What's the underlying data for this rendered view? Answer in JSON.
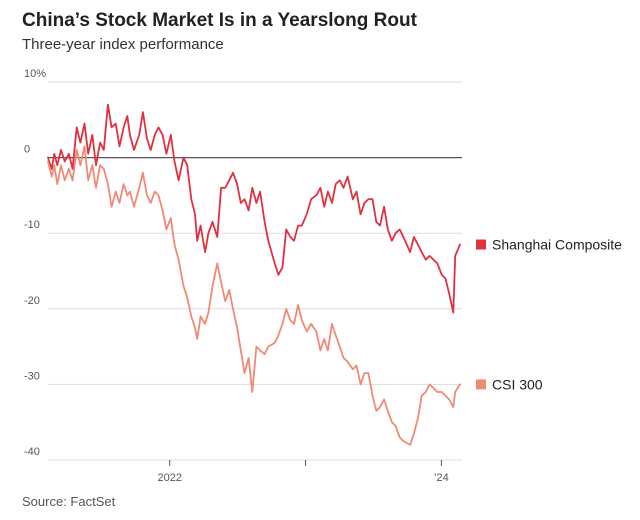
{
  "chart_data": {
    "type": "line",
    "title": "China’s Stock Market Is in a Yearslong Rout",
    "subtitle": "Three-year index performance",
    "source": "Source: FactSet",
    "y_unit": "%",
    "ylim": [
      -40,
      10
    ],
    "y_ticks": [
      {
        "value": 10,
        "label": "10%"
      },
      {
        "value": 0,
        "label": "0"
      },
      {
        "value": -10,
        "label": "-10"
      },
      {
        "value": -20,
        "label": "-20"
      },
      {
        "value": -30,
        "label": "-30"
      },
      {
        "value": -40,
        "label": "-40"
      }
    ],
    "xlim": [
      "2021-02-08",
      "2024-02-20"
    ],
    "x_ticks": [
      {
        "date": "2022-01-01",
        "label": "2022"
      },
      {
        "date": "2023-01-01",
        "label": ""
      },
      {
        "date": "2024-01-01",
        "label": "’24"
      }
    ],
    "grid": true,
    "zero_line": true,
    "legend_placement": "right, at line ends",
    "series": [
      {
        "name": "Shanghai Composite",
        "color": "#e0313f",
        "x": [
          "2021-02-08",
          "2021-02-18",
          "2021-02-25",
          "2021-03-05",
          "2021-03-15",
          "2021-03-25",
          "2021-04-05",
          "2021-04-15",
          "2021-04-26",
          "2021-05-06",
          "2021-05-17",
          "2021-05-27",
          "2021-06-07",
          "2021-06-17",
          "2021-06-28",
          "2021-07-08",
          "2021-07-19",
          "2021-07-29",
          "2021-08-09",
          "2021-08-19",
          "2021-08-30",
          "2021-09-09",
          "2021-09-16",
          "2021-09-27",
          "2021-10-11",
          "2021-10-21",
          "2021-11-01",
          "2021-11-11",
          "2021-11-22",
          "2021-12-02",
          "2021-12-13",
          "2021-12-23",
          "2022-01-04",
          "2022-01-14",
          "2022-01-25",
          "2022-02-07",
          "2022-02-17",
          "2022-02-28",
          "2022-03-10",
          "2022-03-16",
          "2022-03-25",
          "2022-04-06",
          "2022-04-15",
          "2022-04-26",
          "2022-05-09",
          "2022-05-19",
          "2022-05-30",
          "2022-06-10",
          "2022-06-20",
          "2022-07-01",
          "2022-07-11",
          "2022-07-21",
          "2022-08-01",
          "2022-08-11",
          "2022-08-22",
          "2022-09-01",
          "2022-09-13",
          "2022-09-23",
          "2022-10-10",
          "2022-10-20",
          "2022-10-31",
          "2022-11-10",
          "2022-11-21",
          "2022-12-01",
          "2022-12-12",
          "2022-12-22",
          "2023-01-04",
          "2023-01-16",
          "2023-01-30",
          "2023-02-10",
          "2023-02-20",
          "2023-03-02",
          "2023-03-13",
          "2023-03-23",
          "2023-04-03",
          "2023-04-13",
          "2023-04-24",
          "2023-05-08",
          "2023-05-18",
          "2023-05-29",
          "2023-06-08",
          "2023-06-19",
          "2023-06-30",
          "2023-07-10",
          "2023-07-20",
          "2023-07-31",
          "2023-08-10",
          "2023-08-21",
          "2023-08-31",
          "2023-09-11",
          "2023-09-21",
          "2023-10-09",
          "2023-10-19",
          "2023-10-30",
          "2023-11-09",
          "2023-11-20",
          "2023-11-30",
          "2023-12-11",
          "2023-12-21",
          "2024-01-02",
          "2024-01-12",
          "2024-01-22",
          "2024-02-02",
          "2024-02-07",
          "2024-02-20"
        ],
        "y": [
          0.0,
          -1.5,
          0.5,
          -1.0,
          1.0,
          -0.5,
          0.5,
          -1.5,
          4.0,
          2.0,
          4.5,
          0.5,
          3.0,
          -1.0,
          2.0,
          1.0,
          7.0,
          4.0,
          4.5,
          1.5,
          4.0,
          5.5,
          3.0,
          1.0,
          3.0,
          6.0,
          2.5,
          1.0,
          3.0,
          4.0,
          3.0,
          0.5,
          3.0,
          -0.5,
          -3.0,
          0.0,
          -1.0,
          -5.5,
          -7.5,
          -11.0,
          -9.0,
          -12.5,
          -10.0,
          -8.5,
          -10.5,
          -4.0,
          -4.0,
          -3.0,
          -2.0,
          -3.5,
          -6.0,
          -5.5,
          -7.0,
          -4.0,
          -6.0,
          -4.5,
          -8.5,
          -11.0,
          -14.0,
          -15.5,
          -14.5,
          -9.5,
          -10.5,
          -11.0,
          -9.0,
          -9.0,
          -7.5,
          -5.5,
          -5.0,
          -4.0,
          -6.5,
          -4.5,
          -6.0,
          -3.5,
          -3.0,
          -4.0,
          -2.5,
          -5.5,
          -4.5,
          -7.5,
          -6.0,
          -5.5,
          -5.5,
          -8.5,
          -9.0,
          -6.5,
          -9.5,
          -11.0,
          -10.0,
          -9.5,
          -10.5,
          -12.5,
          -10.5,
          -11.5,
          -12.5,
          -13.5,
          -13.0,
          -13.5,
          -14.0,
          -15.5,
          -16.0,
          -18.0,
          -20.5,
          -13.0,
          -11.5
        ]
      },
      {
        "name": "CSI 300",
        "color": "#ef8a76",
        "x": [
          "2021-02-08",
          "2021-02-18",
          "2021-02-25",
          "2021-03-05",
          "2021-03-15",
          "2021-03-25",
          "2021-04-05",
          "2021-04-15",
          "2021-04-26",
          "2021-05-06",
          "2021-05-17",
          "2021-05-27",
          "2021-06-07",
          "2021-06-17",
          "2021-06-28",
          "2021-07-08",
          "2021-07-19",
          "2021-07-29",
          "2021-08-09",
          "2021-08-19",
          "2021-08-30",
          "2021-09-09",
          "2021-09-16",
          "2021-09-27",
          "2021-10-11",
          "2021-10-21",
          "2021-11-01",
          "2021-11-11",
          "2021-11-22",
          "2021-12-02",
          "2021-12-13",
          "2021-12-23",
          "2022-01-04",
          "2022-01-14",
          "2022-01-25",
          "2022-02-07",
          "2022-02-17",
          "2022-02-28",
          "2022-03-10",
          "2022-03-16",
          "2022-03-25",
          "2022-04-06",
          "2022-04-15",
          "2022-04-26",
          "2022-05-09",
          "2022-05-19",
          "2022-05-30",
          "2022-06-10",
          "2022-06-20",
          "2022-07-01",
          "2022-07-11",
          "2022-07-21",
          "2022-08-01",
          "2022-08-11",
          "2022-08-22",
          "2022-09-01",
          "2022-09-13",
          "2022-09-23",
          "2022-10-10",
          "2022-10-20",
          "2022-10-31",
          "2022-11-10",
          "2022-11-21",
          "2022-12-01",
          "2022-12-12",
          "2022-12-22",
          "2023-01-04",
          "2023-01-16",
          "2023-01-30",
          "2023-02-10",
          "2023-02-20",
          "2023-03-02",
          "2023-03-13",
          "2023-03-23",
          "2023-04-03",
          "2023-04-13",
          "2023-04-24",
          "2023-05-08",
          "2023-05-18",
          "2023-05-29",
          "2023-06-08",
          "2023-06-19",
          "2023-06-30",
          "2023-07-10",
          "2023-07-20",
          "2023-07-31",
          "2023-08-10",
          "2023-08-21",
          "2023-08-31",
          "2023-09-11",
          "2023-09-21",
          "2023-10-09",
          "2023-10-19",
          "2023-10-30",
          "2023-11-09",
          "2023-11-20",
          "2023-11-30",
          "2023-12-11",
          "2023-12-21",
          "2024-01-02",
          "2024-01-12",
          "2024-01-22",
          "2024-02-02",
          "2024-02-07",
          "2024-02-20"
        ],
        "y": [
          -0.5,
          -2.5,
          -1.0,
          -3.5,
          -1.0,
          -3.0,
          -1.5,
          -3.0,
          1.0,
          -1.0,
          1.5,
          -3.0,
          -1.0,
          -4.0,
          -1.0,
          -1.5,
          -3.5,
          -6.5,
          -4.5,
          -6.0,
          -3.5,
          -5.0,
          -4.5,
          -6.5,
          -4.0,
          -2.0,
          -5.0,
          -6.0,
          -4.5,
          -5.0,
          -7.0,
          -9.5,
          -8.0,
          -11.5,
          -13.5,
          -17.0,
          -18.5,
          -21.0,
          -22.5,
          -24.0,
          -21.0,
          -22.0,
          -20.5,
          -17.0,
          -14.0,
          -16.5,
          -19.0,
          -17.5,
          -20.0,
          -22.5,
          -25.5,
          -28.5,
          -26.5,
          -31.0,
          -25.0,
          -25.5,
          -26.0,
          -25.0,
          -24.5,
          -23.5,
          -22.0,
          -20.0,
          -21.5,
          -22.0,
          -19.5,
          -21.5,
          -23.0,
          -22.0,
          -23.0,
          -25.5,
          -24.0,
          -25.5,
          -22.0,
          -23.5,
          -25.0,
          -26.5,
          -27.0,
          -28.0,
          -27.5,
          -30.0,
          -28.5,
          -28.5,
          -31.5,
          -33.5,
          -33.0,
          -32.0,
          -33.5,
          -35.0,
          -35.5,
          -37.0,
          -37.5,
          -38.0,
          -36.5,
          -34.5,
          -31.5,
          -31.0,
          -30.0,
          -30.5,
          -31.0,
          -31.0,
          -31.5,
          -32.0,
          -33.0,
          -31.0,
          -30.0
        ]
      }
    ]
  }
}
